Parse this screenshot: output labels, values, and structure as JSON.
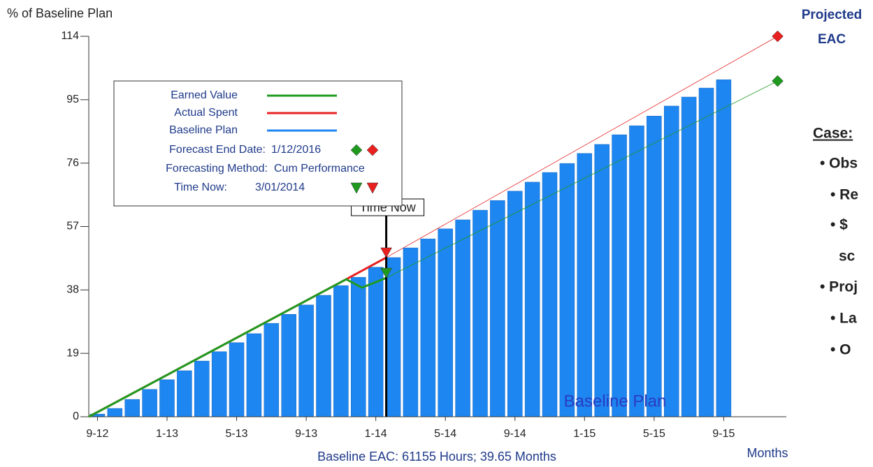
{
  "chart_data": {
    "type": "bar",
    "y_label": "% of Baseline Plan",
    "x_label": "Baseline EAC: 61155 Hours; 39.65 Months",
    "x_unit_label": "Months",
    "xlim": [
      -0.5,
      39.6
    ],
    "xticks": [
      {
        "value": 0,
        "label": "9-12"
      },
      {
        "value": 4,
        "label": "1-13"
      },
      {
        "value": 8,
        "label": "5-13"
      },
      {
        "value": 12,
        "label": "9-13"
      },
      {
        "value": 16,
        "label": "1-14"
      },
      {
        "value": 20,
        "label": "5-14"
      },
      {
        "value": 24,
        "label": "9-14"
      },
      {
        "value": 28,
        "label": "1-15"
      },
      {
        "value": 32,
        "label": "5-15"
      },
      {
        "value": 36,
        "label": "9-15"
      }
    ],
    "ylim": [
      0,
      114
    ],
    "yticks": [
      0,
      19,
      38,
      57,
      76,
      95,
      114
    ],
    "series": [
      {
        "name": "Earned Value",
        "color": "#1f9a1f",
        "x": [
          -0.5,
          14.3,
          15.2,
          16.6
        ],
        "values": [
          0,
          41.2,
          38.7,
          41.6
        ]
      },
      {
        "name": "Actual Spent",
        "color": "#e82020",
        "x": [
          -0.5,
          14.3,
          16.6
        ],
        "values": [
          0,
          41.2,
          47.7
        ]
      },
      {
        "name": "Baseline Plan",
        "color": "#1e86f0",
        "x": [
          0,
          1,
          2,
          3,
          4,
          5,
          6,
          7,
          8,
          9,
          10,
          11,
          12,
          13,
          14,
          15,
          16,
          17,
          18,
          19,
          20,
          21,
          22,
          23,
          24,
          25,
          26,
          27,
          28,
          29,
          30,
          31,
          32,
          33,
          34,
          35,
          36
        ],
        "values": [
          0.8,
          2.5,
          5.2,
          8.2,
          11.1,
          13.8,
          16.7,
          19.5,
          22.2,
          24.9,
          28,
          30.7,
          33.5,
          36.4,
          39.3,
          41.8,
          44.8,
          47.7,
          50.6,
          53.3,
          56.3,
          59,
          61.9,
          64.8,
          67.6,
          70.3,
          73.2,
          75.9,
          78.9,
          81.6,
          84.5,
          87.2,
          90.1,
          93.1,
          95.8,
          98.5,
          101
        ]
      }
    ],
    "projections": [
      {
        "color": "#1f9a1f",
        "x": [
          16.6,
          39.1
        ],
        "values": [
          41.6,
          100.6
        ]
      },
      {
        "color": "#e82020",
        "x": [
          16.6,
          39.1
        ],
        "values": [
          47.7,
          114
        ]
      }
    ],
    "time_now": {
      "label": "Time Now",
      "x": 16.6
    },
    "legend_info": [
      {
        "label": "Forecast End Date:",
        "value": "1/12/2016"
      },
      {
        "label": "Forecasting Method:",
        "value": "Cum Performance"
      },
      {
        "label": "Time Now:",
        "value": "3/01/2014"
      }
    ],
    "bar_annotation": "Baseline Plan",
    "eac_annotation": [
      "Projected",
      "EAC"
    ]
  },
  "side_panel": {
    "heading": "Case:",
    "items": [
      "• Obs",
      "• Re",
      "• $",
      "sc",
      "• Proj",
      "• La",
      "• O"
    ]
  }
}
